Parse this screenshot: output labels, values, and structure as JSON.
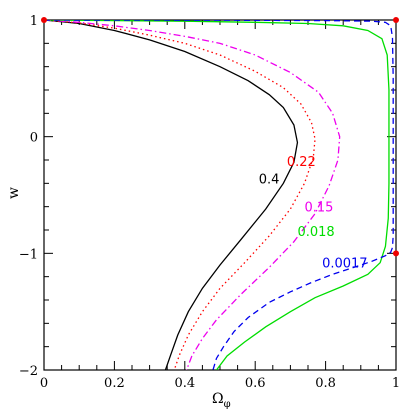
{
  "chart_data": {
    "type": "line",
    "title": "",
    "xlabel": "Ω",
    "xlabel_sub": "φ",
    "ylabel": "w",
    "xlim": [
      0,
      1
    ],
    "ylim": [
      -2,
      1
    ],
    "x_ticks": [
      0,
      0.2,
      0.4,
      0.6,
      0.8,
      1
    ],
    "x_tick_labels": [
      "0",
      "0.2",
      "0.4",
      "0.6",
      "0.8",
      "1"
    ],
    "y_ticks": [
      1,
      0,
      -1,
      -2
    ],
    "y_tick_labels": [
      "1",
      "0",
      "−1",
      "−2"
    ],
    "grid": false,
    "legend": "none",
    "series": [
      {
        "name": "0.4",
        "color": "#000000",
        "dash": "solid",
        "label_at": [
          0.61,
          -0.4
        ],
        "points": [
          [
            0.0,
            1.0
          ],
          [
            0.1,
            0.97
          ],
          [
            0.2,
            0.91
          ],
          [
            0.3,
            0.83
          ],
          [
            0.4,
            0.73
          ],
          [
            0.5,
            0.6
          ],
          [
            0.58,
            0.48
          ],
          [
            0.64,
            0.36
          ],
          [
            0.68,
            0.25
          ],
          [
            0.71,
            0.1
          ],
          [
            0.72,
            -0.05
          ],
          [
            0.71,
            -0.22
          ],
          [
            0.68,
            -0.4
          ],
          [
            0.63,
            -0.62
          ],
          [
            0.56,
            -0.88
          ],
          [
            0.5,
            -1.1
          ],
          [
            0.45,
            -1.3
          ],
          [
            0.41,
            -1.5
          ],
          [
            0.38,
            -1.7
          ],
          [
            0.36,
            -1.87
          ],
          [
            0.345,
            -2.0
          ]
        ]
      },
      {
        "name": "0.22",
        "color": "#ff0000",
        "dash": "dotted",
        "label_at": [
          0.69,
          -0.25
        ],
        "points": [
          [
            0.0,
            1.0
          ],
          [
            0.1,
            0.975
          ],
          [
            0.2,
            0.93
          ],
          [
            0.3,
            0.87
          ],
          [
            0.4,
            0.8
          ],
          [
            0.5,
            0.7
          ],
          [
            0.6,
            0.56
          ],
          [
            0.68,
            0.42
          ],
          [
            0.73,
            0.28
          ],
          [
            0.76,
            0.12
          ],
          [
            0.77,
            -0.02
          ],
          [
            0.765,
            -0.18
          ],
          [
            0.74,
            -0.4
          ],
          [
            0.7,
            -0.62
          ],
          [
            0.64,
            -0.85
          ],
          [
            0.57,
            -1.08
          ],
          [
            0.5,
            -1.3
          ],
          [
            0.45,
            -1.5
          ],
          [
            0.41,
            -1.7
          ],
          [
            0.385,
            -1.87
          ],
          [
            0.37,
            -2.0
          ]
        ]
      },
      {
        "name": "0.15",
        "color": "#ee00ee",
        "dash": "dashdot",
        "label_at": [
          0.74,
          -0.64
        ],
        "points": [
          [
            0.0,
            1.0
          ],
          [
            0.1,
            0.98
          ],
          [
            0.2,
            0.95
          ],
          [
            0.3,
            0.91
          ],
          [
            0.4,
            0.86
          ],
          [
            0.5,
            0.8
          ],
          [
            0.6,
            0.7
          ],
          [
            0.7,
            0.55
          ],
          [
            0.78,
            0.38
          ],
          [
            0.82,
            0.2
          ],
          [
            0.84,
            0.0
          ],
          [
            0.835,
            -0.2
          ],
          [
            0.81,
            -0.42
          ],
          [
            0.77,
            -0.66
          ],
          [
            0.71,
            -0.9
          ],
          [
            0.64,
            -1.12
          ],
          [
            0.56,
            -1.35
          ],
          [
            0.49,
            -1.57
          ],
          [
            0.45,
            -1.73
          ],
          [
            0.42,
            -1.88
          ],
          [
            0.405,
            -2.0
          ]
        ]
      },
      {
        "name": "0.018",
        "color": "#00dd00",
        "dash": "solid",
        "label_at": [
          0.72,
          -0.85
        ],
        "points": [
          [
            0.0,
            1.0
          ],
          [
            0.2,
            0.995
          ],
          [
            0.4,
            0.99
          ],
          [
            0.6,
            0.98
          ],
          [
            0.75,
            0.97
          ],
          [
            0.85,
            0.95
          ],
          [
            0.92,
            0.91
          ],
          [
            0.96,
            0.84
          ],
          [
            0.975,
            0.7
          ],
          [
            0.98,
            0.4
          ],
          [
            0.98,
            0.0
          ],
          [
            0.98,
            -0.4
          ],
          [
            0.978,
            -0.7
          ],
          [
            0.97,
            -0.94
          ],
          [
            0.955,
            -1.08
          ],
          [
            0.92,
            -1.18
          ],
          [
            0.85,
            -1.28
          ],
          [
            0.77,
            -1.38
          ],
          [
            0.7,
            -1.5
          ],
          [
            0.63,
            -1.63
          ],
          [
            0.57,
            -1.76
          ],
          [
            0.52,
            -1.88
          ],
          [
            0.49,
            -2.0
          ]
        ]
      },
      {
        "name": "0.0017",
        "color": "#0000ee",
        "dash": "dashed",
        "label_at": [
          0.79,
          -1.12
        ],
        "points": [
          [
            0.0,
            1.0
          ],
          [
            0.5,
            0.998
          ],
          [
            0.8,
            0.995
          ],
          [
            0.93,
            0.99
          ],
          [
            0.97,
            0.98
          ],
          [
            0.985,
            0.95
          ],
          [
            0.99,
            0.85
          ],
          [
            0.992,
            0.5
          ],
          [
            0.992,
            0.0
          ],
          [
            0.992,
            -0.5
          ],
          [
            0.992,
            -0.85
          ],
          [
            0.99,
            -0.95
          ],
          [
            0.985,
            -0.99
          ],
          [
            0.97,
            -1.02
          ],
          [
            0.93,
            -1.07
          ],
          [
            0.88,
            -1.12
          ],
          [
            0.82,
            -1.18
          ],
          [
            0.76,
            -1.25
          ],
          [
            0.7,
            -1.33
          ],
          [
            0.64,
            -1.42
          ],
          [
            0.58,
            -1.55
          ],
          [
            0.54,
            -1.67
          ],
          [
            0.51,
            -1.8
          ],
          [
            0.49,
            -1.9
          ],
          [
            0.48,
            -2.0
          ]
        ]
      }
    ],
    "markers": {
      "color": "#ee0000",
      "points": [
        [
          0.0,
          1.0
        ],
        [
          1.0,
          1.0
        ],
        [
          1.0,
          -1.0
        ]
      ]
    }
  }
}
